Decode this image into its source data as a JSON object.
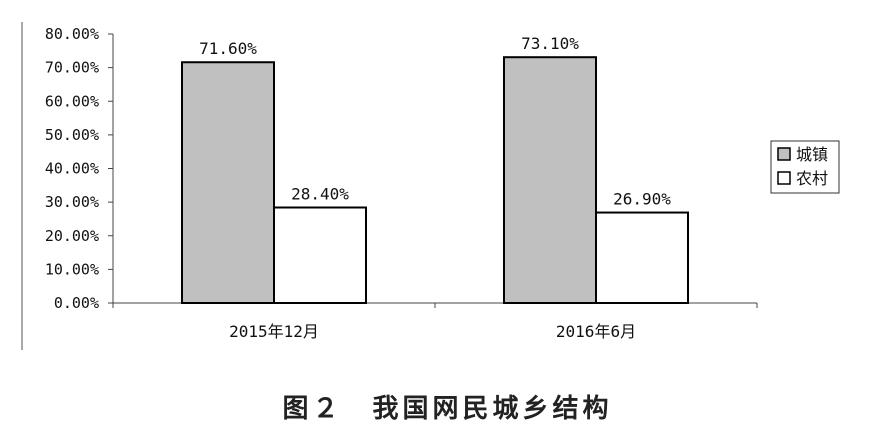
{
  "caption": "图２　我国网民城乡结构",
  "chart_data": {
    "type": "bar",
    "categories": [
      "2015年12月",
      "2016年6月"
    ],
    "series": [
      {
        "name": "城镇",
        "values": [
          71.6,
          73.1
        ],
        "labels": [
          "71.60%",
          "73.10%"
        ],
        "color": "#c0c0c0"
      },
      {
        "name": "农村",
        "values": [
          28.4,
          26.9
        ],
        "labels": [
          "28.40%",
          "26.90%"
        ],
        "color": "#ffffff"
      }
    ],
    "ylim": [
      0,
      80
    ],
    "yticks": [
      "0.00%",
      "10.00%",
      "20.00%",
      "30.00%",
      "40.00%",
      "50.00%",
      "60.00%",
      "70.00%",
      "80.00%"
    ],
    "legend": "right",
    "grid": false
  }
}
